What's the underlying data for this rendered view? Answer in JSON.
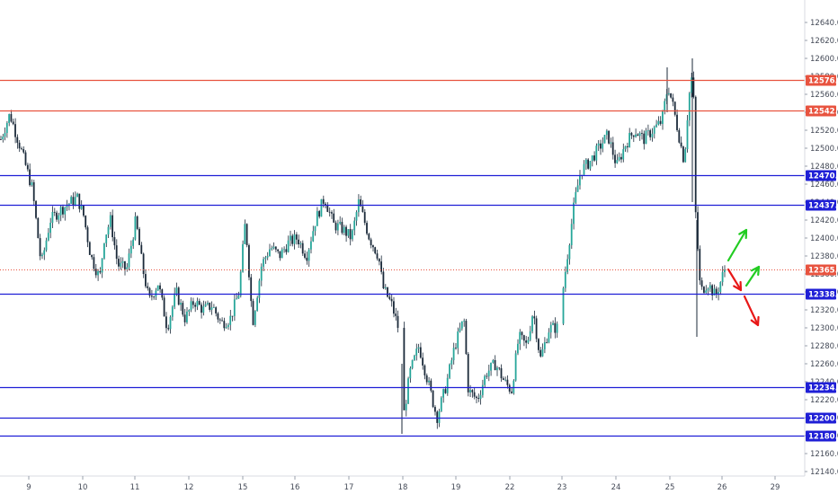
{
  "chart_data": {
    "type": "candlestick",
    "title": "",
    "xlabel": "",
    "ylabel": "",
    "ylim": [
      12135,
      12655
    ],
    "grid": false,
    "legend": "none",
    "y_ticks": [
      "12640.0",
      "12620.0",
      "12600.0",
      "12580.0",
      "12560.0",
      "12540.0",
      "12520.0",
      "12500.0",
      "12480.0",
      "12460.0",
      "12440.0",
      "12420.0",
      "12400.0",
      "12380.0",
      "12360.0",
      "12340.0",
      "12320.0",
      "12300.0",
      "12280.0",
      "12260.0",
      "12240.0",
      "12220.0",
      "12200.0",
      "12180.0",
      "12160.0",
      "12140.0"
    ],
    "x_ticks": [
      "9",
      "10",
      "11",
      "12",
      "15",
      "16",
      "17",
      "18",
      "19",
      "22",
      "23",
      "24",
      "25",
      "26",
      "29"
    ],
    "levels": [
      {
        "value": 12576,
        "label": "12576.0",
        "color": "#e8533f"
      },
      {
        "value": 12542,
        "label": "12542.0",
        "color": "#e8533f"
      },
      {
        "value": 12470,
        "label": "12470.0",
        "color": "#1f1fd6"
      },
      {
        "value": 12437,
        "label": "12437.0",
        "color": "#1f1fd6"
      },
      {
        "value": 12338,
        "label": "12338.0",
        "color": "#1f1fd6"
      },
      {
        "value": 12234,
        "label": "12234.0",
        "color": "#1f1fd6"
      },
      {
        "value": 12200,
        "label": "12200.0",
        "color": "#1f1fd6"
      },
      {
        "value": 12180,
        "label": "12180.0",
        "color": "#1f1fd6"
      }
    ],
    "last_price": {
      "value": 12365,
      "label": "12365.0",
      "color": "#e8533f"
    },
    "price_path": [
      [
        0,
        12510
      ],
      [
        10,
        12538
      ],
      [
        22,
        12500
      ],
      [
        35,
        12455
      ],
      [
        45,
        12370
      ],
      [
        55,
        12420
      ],
      [
        65,
        12430
      ],
      [
        75,
        12438
      ],
      [
        85,
        12445
      ],
      [
        92,
        12425
      ],
      [
        100,
        12380
      ],
      [
        110,
        12355
      ],
      [
        115,
        12400
      ],
      [
        122,
        12420
      ],
      [
        130,
        12370
      ],
      [
        140,
        12365
      ],
      [
        150,
        12420
      ],
      [
        158,
        12365
      ],
      [
        165,
        12330
      ],
      [
        175,
        12350
      ],
      [
        185,
        12300
      ],
      [
        195,
        12340
      ],
      [
        205,
        12310
      ],
      [
        215,
        12330
      ],
      [
        225,
        12320
      ],
      [
        235,
        12325
      ],
      [
        245,
        12305
      ],
      [
        255,
        12310
      ],
      [
        265,
        12340
      ],
      [
        272,
        12420
      ],
      [
        280,
        12305
      ],
      [
        290,
        12370
      ],
      [
        300,
        12390
      ],
      [
        310,
        12380
      ],
      [
        320,
        12395
      ],
      [
        330,
        12400
      ],
      [
        340,
        12380
      ],
      [
        350,
        12420
      ],
      [
        360,
        12445
      ],
      [
        370,
        12415
      ],
      [
        380,
        12410
      ],
      [
        390,
        12400
      ],
      [
        398,
        12440
      ],
      [
        410,
        12400
      ],
      [
        420,
        12380
      ],
      [
        425,
        12345
      ],
      [
        435,
        12325
      ],
      [
        442,
        12300
      ],
      [
        447,
        12195
      ],
      [
        455,
        12250
      ],
      [
        465,
        12280
      ],
      [
        475,
        12240
      ],
      [
        485,
        12200
      ],
      [
        495,
        12235
      ],
      [
        505,
        12280
      ],
      [
        515,
        12310
      ],
      [
        520,
        12230
      ],
      [
        530,
        12220
      ],
      [
        540,
        12250
      ],
      [
        550,
        12260
      ],
      [
        560,
        12240
      ],
      [
        568,
        12230
      ],
      [
        576,
        12290
      ],
      [
        585,
        12280
      ],
      [
        592,
        12320
      ],
      [
        600,
        12265
      ],
      [
        610,
        12300
      ],
      [
        620,
        12300
      ],
      [
        625,
        12340
      ],
      [
        630,
        12380
      ],
      [
        638,
        12440
      ],
      [
        645,
        12475
      ],
      [
        655,
        12485
      ],
      [
        665,
        12500
      ],
      [
        675,
        12515
      ],
      [
        685,
        12480
      ],
      [
        695,
        12505
      ],
      [
        705,
        12520
      ],
      [
        715,
        12510
      ],
      [
        725,
        12520
      ],
      [
        735,
        12530
      ],
      [
        742,
        12570
      ],
      [
        748,
        12545
      ],
      [
        755,
        12510
      ],
      [
        760,
        12485
      ],
      [
        765,
        12555
      ],
      [
        770,
        12590
      ],
      [
        772,
        12440
      ],
      [
        778,
        12340
      ],
      [
        786,
        12350
      ],
      [
        795,
        12335
      ],
      [
        805,
        12365
      ]
    ]
  },
  "price_axis": {
    "y_label_values": [
      12640,
      12620,
      12600,
      12580,
      12560,
      12540,
      12520,
      12500,
      12480,
      12460,
      12440,
      12420,
      12400,
      12380,
      12360,
      12340,
      12320,
      12300,
      12280,
      12260,
      12240,
      12220,
      12200,
      12180,
      12160,
      12140
    ]
  },
  "annotations": {
    "arrows": [
      {
        "name": "up-arrow-1",
        "color": "#22cc22",
        "from": [
          12365,
          0
        ],
        "dir": "up-right"
      },
      {
        "name": "up-arrow-2",
        "color": "#22cc22",
        "dir": "up-right"
      },
      {
        "name": "down-arrow-1",
        "color": "#e81818",
        "dir": "down-right"
      },
      {
        "name": "down-arrow-2",
        "color": "#e81818",
        "dir": "down-right"
      }
    ]
  }
}
